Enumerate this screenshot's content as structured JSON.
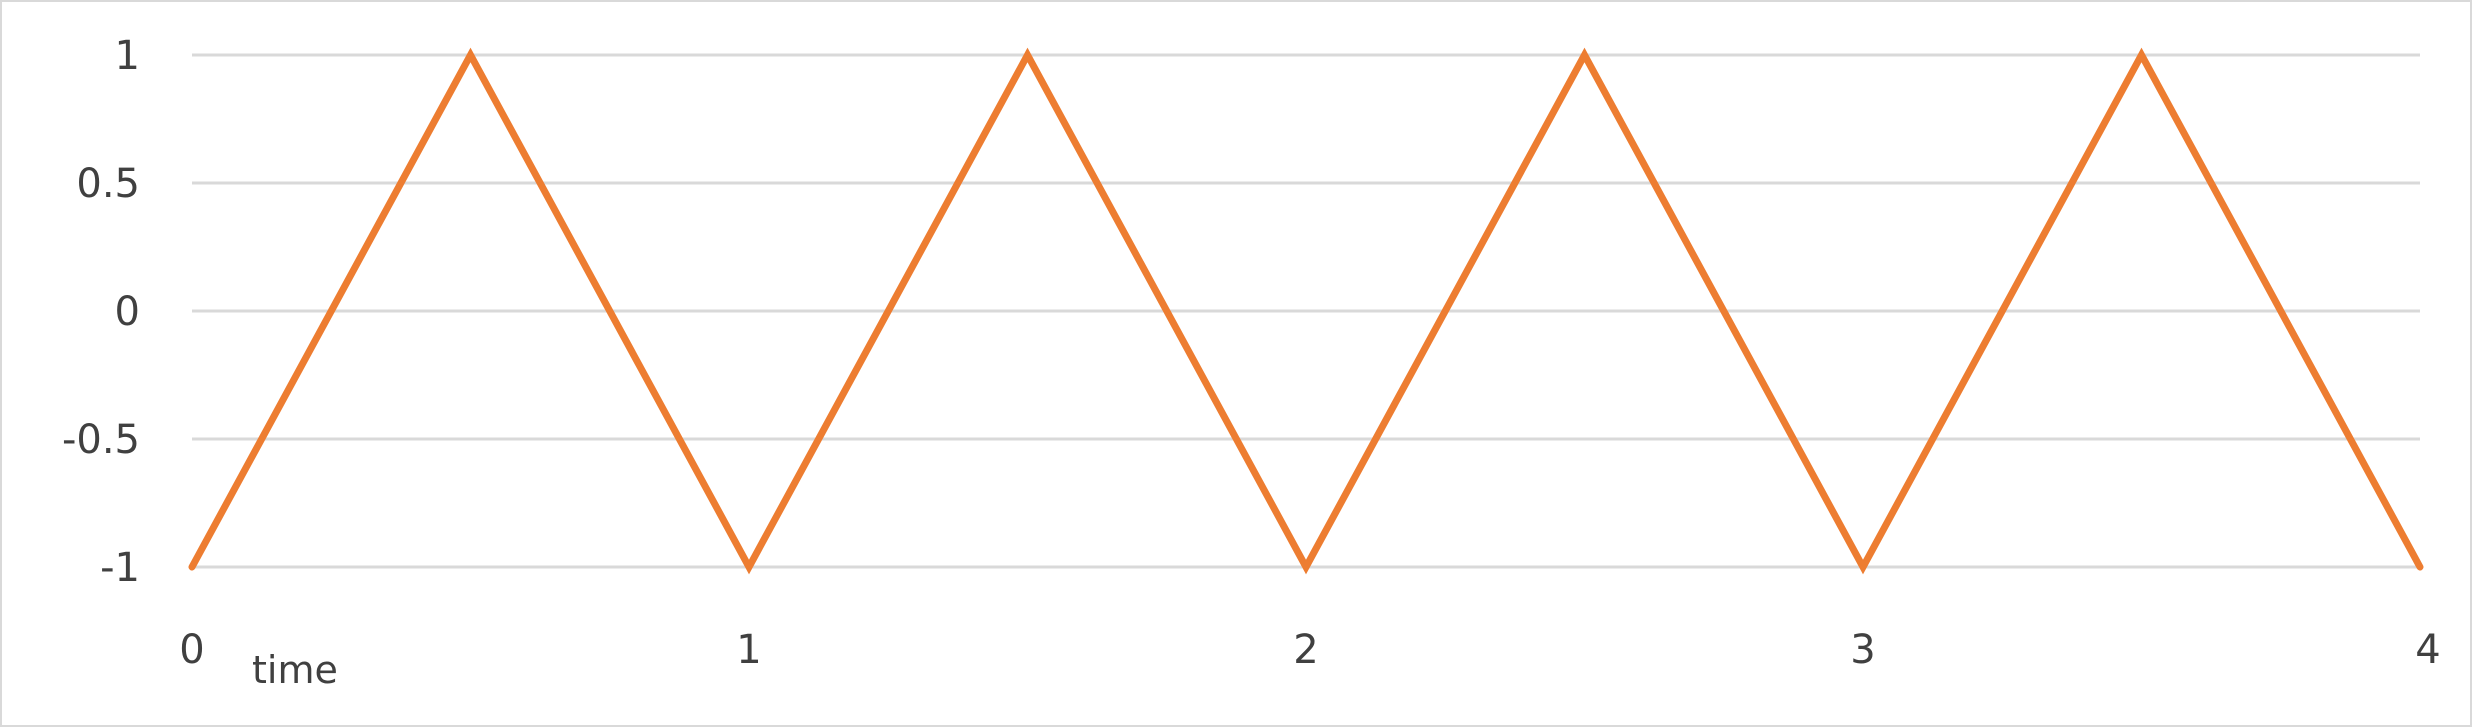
{
  "chart_data": {
    "type": "line",
    "title": "",
    "xlabel": "time",
    "ylabel": "",
    "xlim": [
      0,
      4
    ],
    "ylim": [
      -1,
      1
    ],
    "x_ticks": [
      0,
      1,
      2,
      3,
      4
    ],
    "x_tick_labels": [
      "0",
      "1",
      "2",
      "3",
      "4"
    ],
    "y_ticks": [
      1,
      0.5,
      0,
      -0.5,
      -1
    ],
    "y_tick_labels": [
      "1",
      "0.5",
      "0",
      "-0.5",
      "-1"
    ],
    "grid": "horizontal",
    "legend": "none",
    "series": [
      {
        "color": "#ed7d31",
        "x": [
          0,
          0.5,
          1,
          1.5,
          2,
          2.5,
          3,
          3.5,
          4
        ],
        "y": [
          -1,
          1,
          -1,
          1,
          -1,
          1,
          -1,
          1,
          -1
        ]
      }
    ]
  }
}
